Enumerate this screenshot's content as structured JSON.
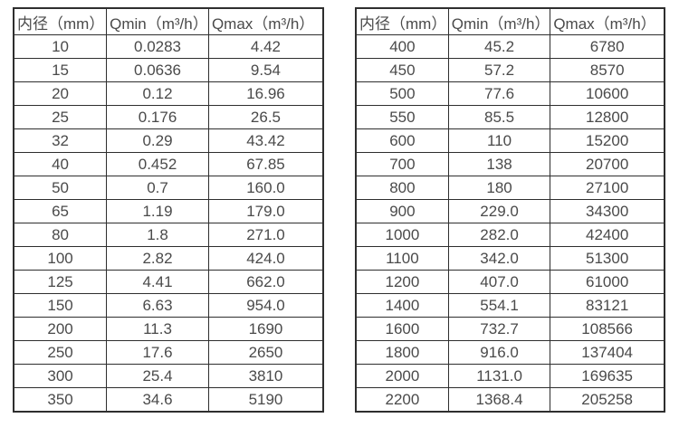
{
  "colors": {
    "background": "#ffffff",
    "border": "#2e2e2e",
    "text": "#4a4a4a"
  },
  "left_table": {
    "headers": [
      "内径（mm）",
      "Qmin（m³/h）",
      "Qmax（m³/h）"
    ],
    "rows": [
      [
        "10",
        "0.0283",
        "4.42"
      ],
      [
        "15",
        "0.0636",
        "9.54"
      ],
      [
        "20",
        "0.12",
        "16.96"
      ],
      [
        "25",
        "0.176",
        "26.5"
      ],
      [
        "32",
        "0.29",
        "43.42"
      ],
      [
        "40",
        "0.452",
        "67.85"
      ],
      [
        "50",
        "0.7",
        "160.0"
      ],
      [
        "65",
        "1.19",
        "179.0"
      ],
      [
        "80",
        "1.8",
        "271.0"
      ],
      [
        "100",
        "2.82",
        "424.0"
      ],
      [
        "125",
        "4.41",
        "662.0"
      ],
      [
        "150",
        "6.63",
        "954.0"
      ],
      [
        "200",
        "11.3",
        "1690"
      ],
      [
        "250",
        "17.6",
        "2650"
      ],
      [
        "300",
        "25.4",
        "3810"
      ],
      [
        "350",
        "34.6",
        "5190"
      ]
    ]
  },
  "right_table": {
    "headers": [
      "内径（mm）",
      "Qmin（m³/h）",
      "Qmax（m³/h）"
    ],
    "rows": [
      [
        "400",
        "45.2",
        "6780"
      ],
      [
        "450",
        "57.2",
        "8570"
      ],
      [
        "500",
        "77.6",
        "10600"
      ],
      [
        "550",
        "85.5",
        "12800"
      ],
      [
        "600",
        "110",
        "15200"
      ],
      [
        "700",
        "138",
        "20700"
      ],
      [
        "800",
        "180",
        "27100"
      ],
      [
        "900",
        "229.0",
        "34300"
      ],
      [
        "1000",
        "282.0",
        "42400"
      ],
      [
        "1100",
        "342.0",
        "51300"
      ],
      [
        "1200",
        "407.0",
        "61000"
      ],
      [
        "1400",
        "554.1",
        "83121"
      ],
      [
        "1600",
        "732.7",
        "108566"
      ],
      [
        "1800",
        "916.0",
        "137404"
      ],
      [
        "2000",
        "1131.0",
        "169635"
      ],
      [
        "2200",
        "1368.4",
        "205258"
      ]
    ]
  }
}
